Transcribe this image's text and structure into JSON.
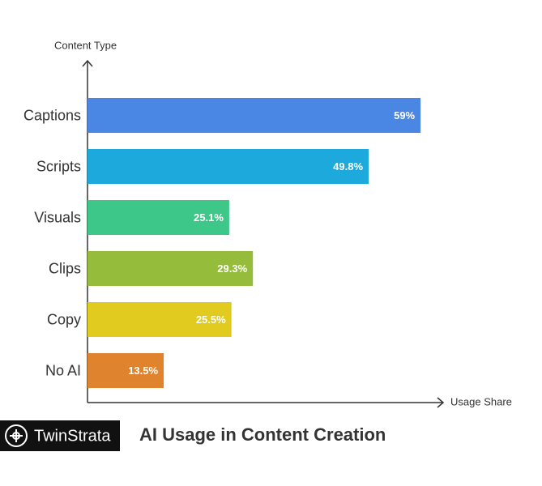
{
  "chart_data": {
    "type": "bar",
    "orientation": "horizontal",
    "title": "AI Usage in Content Creation",
    "brand": "TwinStrata",
    "y_label": "Content Type",
    "x_label": "Usage Share",
    "categories": [
      "Captions",
      "Scripts",
      "Visuals",
      "Clips",
      "Copy",
      "No AI"
    ],
    "values": [
      59,
      49.8,
      25.1,
      29.3,
      25.5,
      13.5
    ],
    "value_labels": [
      "59%",
      "49.8%",
      "25.1%",
      "29.3%",
      "25.5%",
      "13.5%"
    ],
    "colors": [
      "#4a86e4",
      "#1ea9dc",
      "#3dc788",
      "#96bc3b",
      "#e0cb1e",
      "#e0832f"
    ],
    "xlim": [
      0,
      63
    ]
  }
}
